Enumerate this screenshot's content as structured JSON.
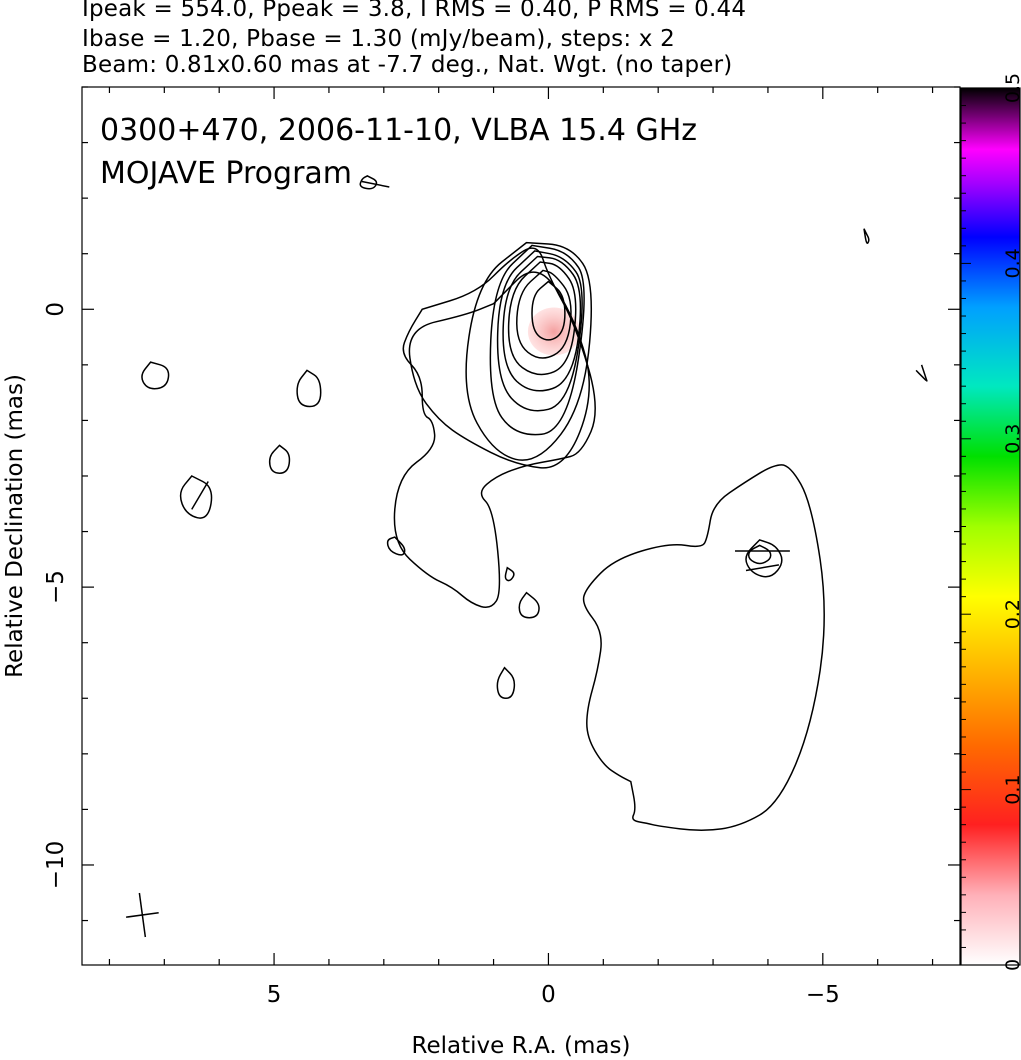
{
  "header": {
    "line1": "Ipeak = 554.0, Ppeak = 3.8, I RMS = 0.40, P RMS = 0.44",
    "line2": "Ibase = 1.20, Pbase = 1.30 (mJy/beam), steps: x 2",
    "line3": "Beam: 0.81x0.60 mas at -7.7 deg., Nat. Wgt. (no taper)"
  },
  "chart_data": {
    "type": "contour",
    "title": "0300+470, 2006-11-10, VLBA 15.4 GHz",
    "subtitle": "MOJAVE Program",
    "xlabel": "Relative R.A. (mas)",
    "ylabel": "Relative Declination (mas)",
    "xlim": [
      8.5,
      -7.5
    ],
    "ylim": [
      -11.8,
      4.0
    ],
    "x_ticks": [
      {
        "value": 5,
        "label": "5"
      },
      {
        "value": 0,
        "label": "0"
      },
      {
        "value": -5,
        "label": "−5"
      }
    ],
    "y_ticks": [
      {
        "value": 0,
        "label": "0"
      },
      {
        "value": -5,
        "label": "−5"
      },
      {
        "value": -10,
        "label": "−10"
      }
    ],
    "colorbar": {
      "min": 0,
      "max": 0.5,
      "ticks": [
        {
          "value": 0,
          "label": "0"
        },
        {
          "value": 0.1,
          "label": "0.1"
        },
        {
          "value": 0.2,
          "label": "0.2"
        },
        {
          "value": 0.3,
          "label": "0.3"
        },
        {
          "value": 0.4,
          "label": "0.4"
        },
        {
          "value": 0.5,
          "label": "0.5"
        }
      ]
    },
    "contour_levels_mJy_per_beam": [
      1.2,
      2.4,
      4.8,
      9.6,
      19.2,
      38.4,
      76.8,
      153.6,
      307.2
    ],
    "peak": {
      "x": 0.0,
      "y": 0.0,
      "intensity_mJy_per_beam": 554.0
    },
    "polarized_patch": {
      "x": -0.1,
      "y": -0.4,
      "fraction": 0.05
    },
    "beam": {
      "major_mas": 0.81,
      "minor_mas": 0.6,
      "pa_deg": -7.7
    },
    "core_contours": [
      {
        "x": [
          0.0,
          0.3,
          0.3,
          0.0,
          -0.3,
          -0.3,
          0.0
        ],
        "y": [
          0.5,
          0.25,
          -0.4,
          -0.6,
          -0.4,
          0.25,
          0.5
        ]
      },
      {
        "x": [
          0.1,
          0.55,
          0.6,
          0.15,
          -0.35,
          -0.45,
          -0.1,
          0.1
        ],
        "y": [
          0.7,
          0.3,
          -0.6,
          -0.95,
          -0.7,
          0.2,
          0.65,
          0.7
        ]
      },
      {
        "x": [
          0.15,
          0.7,
          0.75,
          0.2,
          -0.4,
          -0.55,
          -0.2,
          0.15
        ],
        "y": [
          0.85,
          0.35,
          -0.85,
          -1.25,
          -1.0,
          0.3,
          0.8,
          0.85
        ]
      },
      {
        "x": [
          0.2,
          0.8,
          0.85,
          0.3,
          -0.45,
          -0.65,
          -0.25,
          0.2
        ],
        "y": [
          0.95,
          0.4,
          -1.05,
          -1.55,
          -1.3,
          0.35,
          0.9,
          0.95
        ]
      },
      {
        "x": [
          0.25,
          0.9,
          0.95,
          0.4,
          -0.4,
          -0.7,
          -0.3,
          0.25
        ],
        "y": [
          1.05,
          0.45,
          -1.3,
          -1.9,
          -1.7,
          0.4,
          0.95,
          1.05
        ]
      },
      {
        "x": [
          0.3,
          1.0,
          1.1,
          0.6,
          -0.35,
          -0.75,
          -0.35,
          0.3
        ],
        "y": [
          1.15,
          0.5,
          -1.6,
          -2.3,
          -2.2,
          0.45,
          1.05,
          1.15
        ]
      },
      {
        "x": [
          0.4,
          1.3,
          1.6,
          1.0,
          0.2,
          -0.65,
          -0.85,
          -0.4,
          0.4
        ],
        "y": [
          1.2,
          0.5,
          -1.5,
          -2.6,
          -2.8,
          -1.7,
          0.5,
          1.15,
          1.2
        ]
      },
      {
        "x": [
          1.0,
          1.5,
          2.6,
          2.45,
          2.0,
          1.5,
          0.6,
          -0.3,
          -0.85,
          -0.5,
          0.2,
          1.0
        ],
        "y": [
          0.1,
          -0.1,
          -0.35,
          -1.4,
          -2.0,
          -2.35,
          -2.8,
          -2.9,
          -1.5,
          -0.2,
          0.9,
          0.1
        ]
      }
    ],
    "outer_contours": [
      {
        "x": [
          2.3,
          2.55,
          2.7,
          2.3,
          2.3,
          2.1,
          2.05,
          2.75,
          2.85,
          2.2,
          1.75,
          1.4,
          1.05,
          0.85,
          1.0,
          1.3,
          0.95,
          0.4,
          -0.2,
          -0.6,
          -0.95,
          -0.5,
          0.0,
          0.2,
          0.7,
          1.3,
          2.3
        ],
        "y": [
          0.0,
          -0.4,
          -0.8,
          -1.2,
          -1.9,
          -2.0,
          -2.5,
          -3.0,
          -4.2,
          -4.8,
          -5.0,
          -5.3,
          -5.4,
          -5.1,
          -3.6,
          -3.3,
          -3.0,
          -2.8,
          -2.7,
          -2.6,
          -1.8,
          -0.3,
          0.6,
          1.2,
          0.9,
          0.3,
          0.0
        ]
      },
      {
        "x": [
          -1.5,
          -1.6,
          -1.5,
          -1.8,
          -2.0,
          -2.8,
          -3.5,
          -4.2,
          -4.8,
          -5.1,
          -4.8,
          -4.4,
          -4.1,
          -3.6,
          -3.0,
          -2.9,
          -2.8,
          -2.2,
          -1.2,
          -0.7,
          -0.6,
          -1.0,
          -0.9,
          -0.7,
          -0.7,
          -1.0,
          -1.3,
          -1.5
        ],
        "y": [
          -8.5,
          -9.0,
          -9.2,
          -9.25,
          -9.3,
          -9.4,
          -9.3,
          -8.9,
          -7.5,
          -5.5,
          -3.5,
          -2.8,
          -2.8,
          -3.1,
          -3.5,
          -4.1,
          -4.3,
          -4.2,
          -4.5,
          -5.0,
          -5.3,
          -5.8,
          -6.5,
          -7.2,
          -7.7,
          -8.2,
          -8.4,
          -8.5
        ]
      },
      {
        "x": [
          -3.85,
          -4.15,
          -4.3,
          -4.05,
          -3.7,
          -3.55,
          -3.85
        ],
        "y": [
          -4.15,
          -4.25,
          -4.55,
          -4.85,
          -4.75,
          -4.45,
          -4.15
        ]
      },
      {
        "x": [
          -3.85,
          -4.05,
          -4.05,
          -3.85,
          -3.65,
          -3.65,
          -3.85
        ],
        "y": [
          -4.25,
          -4.35,
          -4.5,
          -4.6,
          -4.5,
          -4.35,
          -4.25
        ]
      },
      {
        "x": [
          7.25,
          6.9,
          6.95,
          7.3,
          7.45,
          7.25
        ],
        "y": [
          -0.95,
          -1.05,
          -1.4,
          -1.45,
          -1.2,
          -0.95
        ]
      },
      {
        "x": [
          6.5,
          6.1,
          6.2,
          6.6,
          6.75,
          6.5
        ],
        "y": [
          -3.0,
          -3.2,
          -3.8,
          -3.7,
          -3.3,
          -3.0
        ]
      },
      {
        "x": [
          4.4,
          4.15,
          4.15,
          4.55,
          4.6,
          4.4
        ],
        "y": [
          -1.1,
          -1.25,
          -1.75,
          -1.75,
          -1.35,
          -1.1
        ]
      },
      {
        "x": [
          4.9,
          4.7,
          4.75,
          5.05,
          5.1,
          4.9
        ],
        "y": [
          -2.45,
          -2.6,
          -2.95,
          -2.95,
          -2.65,
          -2.45
        ]
      },
      {
        "x": [
          2.8,
          2.6,
          2.65,
          2.9,
          2.95,
          2.8
        ],
        "y": [
          -4.1,
          -4.3,
          -4.45,
          -4.35,
          -4.15,
          -4.1
        ]
      },
      {
        "x": [
          3.3,
          3.1,
          3.2,
          3.45,
          3.4,
          3.3
        ],
        "y": [
          2.4,
          2.3,
          2.15,
          2.2,
          2.35,
          2.4
        ]
      },
      {
        "x": [
          0.4,
          0.15,
          0.2,
          0.5,
          0.55,
          0.4
        ],
        "y": [
          -5.1,
          -5.3,
          -5.55,
          -5.55,
          -5.3,
          -5.1
        ]
      },
      {
        "x": [
          0.8,
          0.6,
          0.65,
          0.9,
          0.95,
          0.8
        ],
        "y": [
          -6.45,
          -6.65,
          -7.0,
          -7.0,
          -6.7,
          -6.45
        ]
      },
      {
        "x": [
          0.75,
          0.6,
          0.7,
          0.8,
          0.75
        ],
        "y": [
          -4.65,
          -4.75,
          -4.9,
          -4.85,
          -4.65
        ]
      },
      {
        "x": [
          -5.75,
          -5.8,
          -5.85,
          -5.8,
          -5.75
        ],
        "y": [
          1.45,
          1.35,
          1.25,
          1.15,
          1.45
        ]
      },
      {
        "x": [
          -6.7,
          -6.8,
          -6.9,
          -6.8,
          -6.7
        ],
        "y": [
          -1.1,
          -1.2,
          -1.3,
          -1.2,
          -1.1
        ]
      }
    ],
    "evpa_ticks": [
      {
        "x1": 6.2,
        "y1": -3.1,
        "x2": 6.5,
        "y2": -3.6
      },
      {
        "x1": 3.4,
        "y1": 2.3,
        "x2": 2.9,
        "y2": 2.2
      },
      {
        "x1": -3.4,
        "y1": -4.35,
        "x2": -4.4,
        "y2": -4.35
      },
      {
        "x1": -3.6,
        "y1": -4.7,
        "x2": -4.2,
        "y2": -4.6
      },
      {
        "x1": -6.8,
        "y1": -1.0,
        "x2": -6.9,
        "y2": -1.3
      }
    ]
  }
}
